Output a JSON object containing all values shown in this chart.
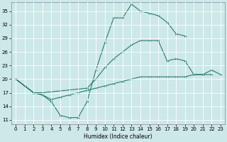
{
  "xlabel": "Humidex (Indice chaleur)",
  "bg_color": "#cce8e8",
  "grid_color": "#ffffff",
  "line_color": "#1a6b5a",
  "xlim": [
    -0.5,
    23.5
  ],
  "ylim": [
    10.0,
    37.0
  ],
  "yticks": [
    11,
    14,
    17,
    20,
    23,
    26,
    29,
    32,
    35
  ],
  "xticks": [
    0,
    1,
    2,
    3,
    4,
    5,
    6,
    7,
    8,
    9,
    10,
    11,
    12,
    13,
    14,
    15,
    16,
    17,
    18,
    19,
    20,
    21,
    22,
    23
  ],
  "line1_x": [
    0,
    1,
    2,
    3,
    4,
    5,
    6,
    7,
    8,
    9,
    10,
    11,
    12,
    13,
    14,
    15,
    16,
    17,
    18,
    19
  ],
  "line1_y": [
    20.0,
    18.5,
    17.0,
    16.5,
    15.0,
    12.0,
    11.5,
    11.5,
    15.0,
    22.0,
    28.0,
    33.5,
    33.5,
    36.5,
    35.0,
    34.5,
    34.0,
    32.5,
    30.0,
    29.5
  ],
  "line2_x": [
    0,
    2,
    3,
    8,
    9,
    10,
    11,
    12,
    13,
    14,
    15,
    16,
    17,
    18,
    19,
    20,
    21,
    22,
    23
  ],
  "line2_y": [
    20.0,
    17.0,
    17.0,
    18.0,
    20.0,
    22.5,
    24.5,
    26.0,
    27.5,
    28.5,
    28.5,
    28.5,
    24.0,
    24.5,
    24.0,
    21.0,
    21.0,
    22.0,
    21.0
  ],
  "line3_x": [
    0,
    1,
    2,
    3,
    4,
    5,
    6,
    7,
    8,
    9,
    10,
    11,
    12,
    13,
    14,
    15,
    16,
    17,
    18,
    19,
    20,
    21,
    22
  ],
  "line3_y": [
    20.0,
    18.5,
    17.0,
    16.5,
    15.5,
    16.0,
    16.5,
    17.0,
    17.5,
    18.0,
    18.5,
    19.0,
    19.5,
    20.0,
    20.5,
    20.5,
    20.5,
    20.5,
    20.5,
    20.5,
    21.0,
    21.0,
    21.0
  ]
}
